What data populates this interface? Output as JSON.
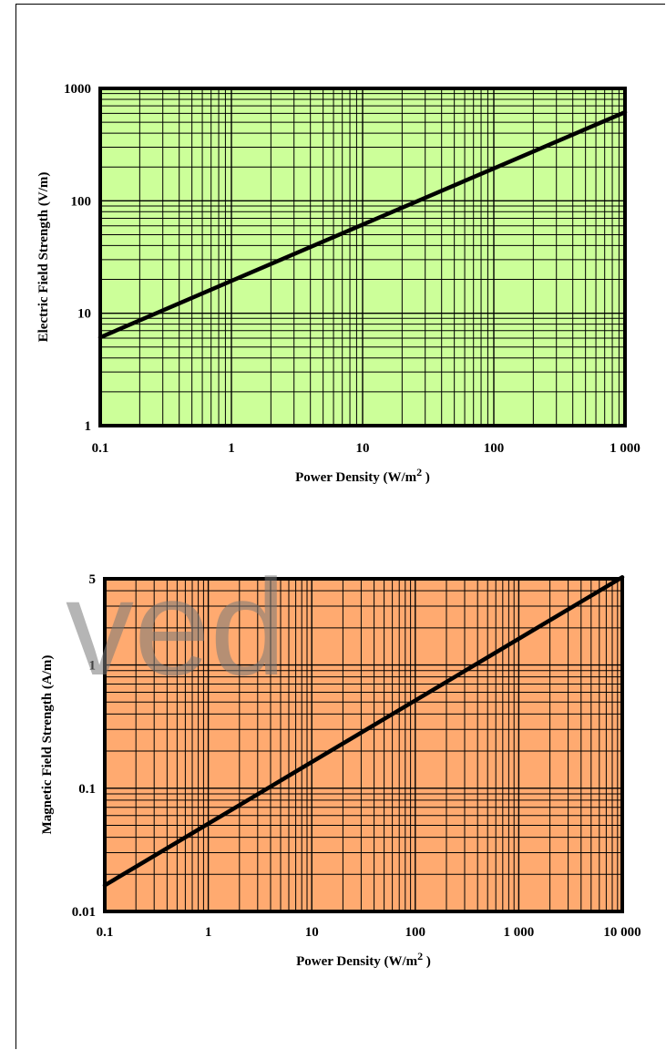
{
  "chart_data": [
    {
      "type": "line",
      "xscale": "log",
      "yscale": "log",
      "xlim": [
        0.1,
        1000
      ],
      "ylim": [
        1,
        1000
      ],
      "xlabel": "Power Density (W/m",
      "xlabel_sup": "2",
      "xlabel_end": " )",
      "ylabel": "Electric Field Strength (V/m)",
      "xticks": [
        0.1,
        1,
        10,
        100,
        1000
      ],
      "xtick_labels": [
        "0.1",
        "1",
        "10",
        "100",
        "1 000"
      ],
      "yticks": [
        1,
        10,
        100,
        1000
      ],
      "ytick_labels": [
        "1",
        "10",
        "100",
        "1000"
      ],
      "grid": true,
      "background": "#ccff99",
      "series": [
        {
          "x": [
            0.1,
            1,
            10,
            100,
            1000
          ],
          "y": [
            6.1,
            19.4,
            61.4,
            194.2,
            614
          ]
        }
      ]
    },
    {
      "type": "line",
      "xscale": "log",
      "yscale": "log",
      "xlim": [
        0.1,
        10000
      ],
      "ylim": [
        0.01,
        5
      ],
      "xlabel": "Power Density (W/m",
      "xlabel_sup": "2",
      "xlabel_end": " )",
      "ylabel": "Magnetic Field Strength (A/m)",
      "xticks": [
        0.1,
        1,
        10,
        100,
        1000,
        10000
      ],
      "xtick_labels": [
        "0.1",
        "1",
        "10",
        "100",
        "1 000",
        "10 000"
      ],
      "yticks": [
        0.01,
        0.1,
        1,
        5
      ],
      "ytick_labels": [
        "0.01",
        "0.1",
        "1",
        "5"
      ],
      "grid": true,
      "background": "#ffaa70",
      "series": [
        {
          "x": [
            0.1,
            1,
            10,
            100,
            1000,
            10000
          ],
          "y": [
            0.0163,
            0.0515,
            0.163,
            0.515,
            1.63,
            5.15
          ]
        }
      ]
    }
  ],
  "watermark": "ved"
}
